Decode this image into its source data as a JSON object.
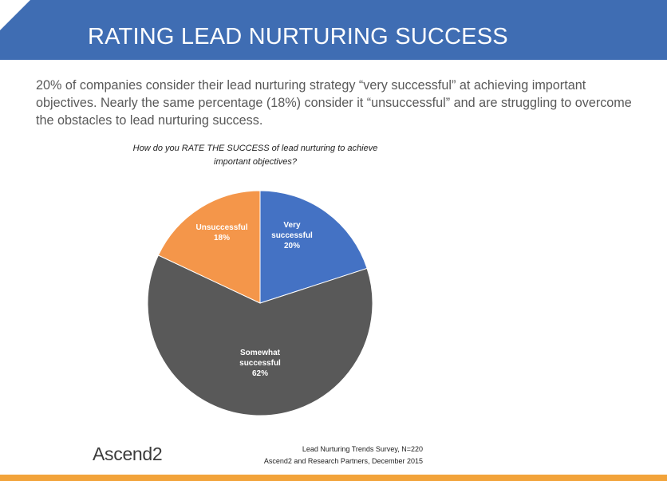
{
  "header": {
    "title": "RATING LEAD NURTURING SUCCESS"
  },
  "intro": "20% of companies consider their lead nurturing strategy “very successful” at achieving important objectives. Nearly the same percentage (18%) consider it “unsuccessful” and are struggling to overcome the obstacles to lead nurturing success.",
  "chart_data": {
    "type": "pie",
    "title": "How do you RATE THE SUCCESS of lead nurturing to achieve important objectives?",
    "slices": [
      {
        "label": "Very successful",
        "value": 20,
        "display": "20%",
        "color": "#4472c4"
      },
      {
        "label": "Somewhat successful",
        "value": 62,
        "display": "62%",
        "color": "#595959"
      },
      {
        "label": "Unsuccessful",
        "value": 18,
        "display": "18%",
        "color": "#f4964a"
      }
    ]
  },
  "footer": {
    "logo": "Ascend2",
    "source_line1": "Lead Nurturing Trends Survey, N=220",
    "source_line2": "Ascend2 and Research Partners, December 2015",
    "accent_color": "#f2a33a"
  }
}
